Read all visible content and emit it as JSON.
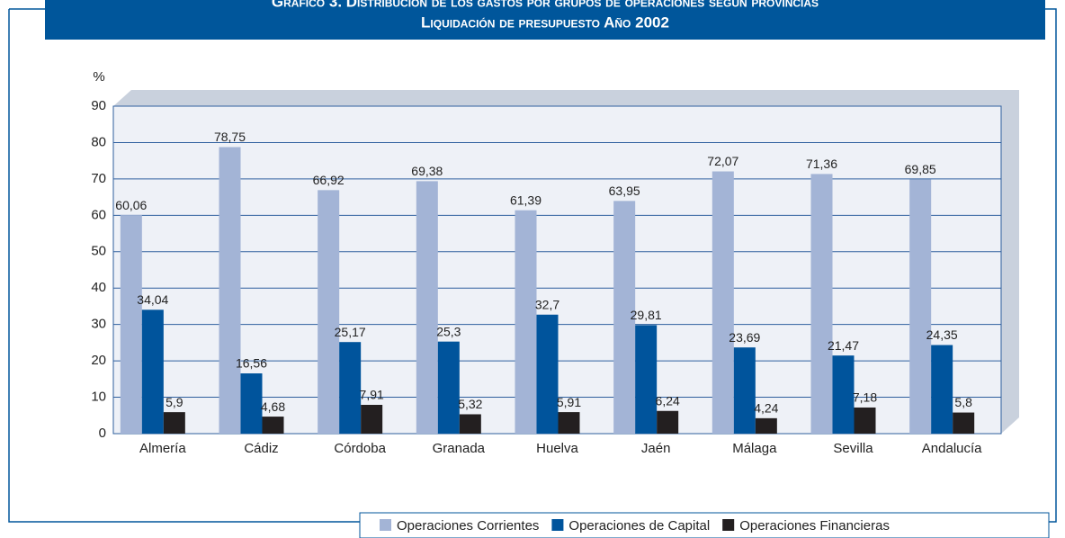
{
  "chart_data": {
    "type": "bar",
    "title": "Gráfico 3. Distribución de los gastos por grupos de operaciones según provincias",
    "subtitle": "Liquidación de presupuesto Año 2002",
    "y_label": "%",
    "categories": [
      "Almería",
      "Cádiz",
      "Córdoba",
      "Granada",
      "Huelva",
      "Jaén",
      "Málaga",
      "Sevilla",
      "Andalucía"
    ],
    "series": [
      {
        "name": "Operaciones Corrientes",
        "color": "#a3b4d6",
        "values": [
          60.06,
          78.75,
          66.92,
          69.38,
          61.39,
          63.95,
          72.07,
          71.36,
          69.85
        ],
        "value_labels": [
          "60,06",
          "78,75",
          "66,92",
          "69,38",
          "61,39",
          "63,95",
          "72,07",
          "71,36",
          "69,85"
        ]
      },
      {
        "name": "Operaciones de Capital",
        "color": "#00549c",
        "values": [
          34.04,
          16.56,
          25.17,
          25.3,
          32.7,
          29.81,
          23.69,
          21.47,
          24.35
        ],
        "value_labels": [
          "34,04",
          "16,56",
          "25,17",
          "25,3",
          "32,7",
          "29,81",
          "23,69",
          "21,47",
          "24,35"
        ]
      },
      {
        "name": "Operaciones Financieras",
        "color": "#231f20",
        "values": [
          5.9,
          4.68,
          7.91,
          5.32,
          5.91,
          6.24,
          4.24,
          7.18,
          5.8
        ],
        "value_labels": [
          "5,9",
          "4,68",
          "7,91",
          "5,32",
          "5,91",
          "6,24",
          "4,24",
          "7,18",
          "5,8"
        ]
      }
    ],
    "ylim": [
      0,
      90
    ],
    "yticks": [
      0,
      10,
      20,
      30,
      40,
      50,
      60,
      70,
      80,
      90
    ],
    "grid": true,
    "legend": "bottom-right"
  }
}
